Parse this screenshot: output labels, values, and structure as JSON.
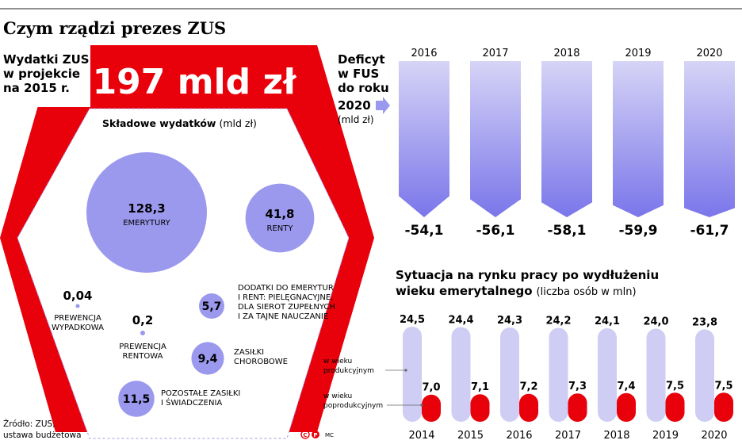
{
  "headline": "Czym rządzi prezes ZUS",
  "spending": {
    "label_lines": [
      "Wydatki ZUS",
      "w projekcie",
      "na 2015 r."
    ],
    "total": "197 mld zł",
    "components_title": "Składowe wydatków",
    "components_unit": "(mld zł)"
  },
  "deficit": {
    "label_lines": [
      "Deficyt",
      "w FUS",
      "do roku",
      "2020"
    ],
    "unit": "(mld zł)"
  },
  "labor": {
    "title_line1": "Sytuacja na rynku pracy po wydłużeniu",
    "title_line2": "wieku emerytalnego",
    "unit": "(liczba osób w mln)",
    "legend_working": [
      "w wieku",
      "produkcyjnym"
    ],
    "legend_retired": [
      "w wieku",
      "poprodukcyjnym"
    ]
  },
  "source_lines": [
    "Źródło: ZUS,",
    "ustawa budżetowa"
  ],
  "credit": "MC",
  "colors": {
    "brand_red": "#e8000b",
    "bubble_purple": "#9b99ee",
    "deficit_top": "#d6d4f6",
    "deficit_bottom": "#7a76ea",
    "working_bar": "#cfcdf4",
    "retired_bar": "#e8000b"
  },
  "chart_data": [
    {
      "type": "bubble",
      "title": "Składowe wydatków",
      "unit": "mld zł",
      "total": 197,
      "items": [
        {
          "value": 128.3,
          "label": "128,3",
          "name_lines": [
            "EMERYTURY"
          ]
        },
        {
          "value": 41.8,
          "label": "41,8",
          "name_lines": [
            "RENTY"
          ]
        },
        {
          "value": 0.04,
          "label": "0,04",
          "name_lines": [
            "PREWENCJA",
            "WYPADKOWA"
          ]
        },
        {
          "value": 0.2,
          "label": "0,2",
          "name_lines": [
            "PREWENCJA",
            "RENTOWA"
          ]
        },
        {
          "value": 5.7,
          "label": "5,7",
          "name_lines": [
            "DODATKI DO EMERYTUR",
            "I RENT: PIELĘGNACYJNE,",
            "DLA SIEROT ZUPEŁNYCH",
            "I ZA TAJNE NAUCZANIE"
          ]
        },
        {
          "value": 9.4,
          "label": "9,4",
          "name_lines": [
            "ZASIŁKI",
            "CHOROBOWE"
          ]
        },
        {
          "value": 11.5,
          "label": "11,5",
          "name_lines": [
            "POZOSTAŁE ZASIŁKI",
            "I ŚWIADCZENIA"
          ]
        }
      ]
    },
    {
      "type": "bar",
      "title": "Deficyt w FUS do roku 2020",
      "unit": "mld zł",
      "categories": [
        "2016",
        "2017",
        "2018",
        "2019",
        "2020"
      ],
      "values": [
        -54.1,
        -56.1,
        -58.1,
        -59.9,
        -61.7
      ],
      "labels": [
        "-54,1",
        "-56,1",
        "-58,1",
        "-59,9",
        "-61,7"
      ]
    },
    {
      "type": "bar",
      "title": "Sytuacja na rynku pracy po wydłużeniu wieku emerytalnego",
      "unit": "liczba osób w mln",
      "categories": [
        "2014",
        "2015",
        "2016",
        "2017",
        "2018",
        "2019",
        "2020"
      ],
      "series": [
        {
          "name": "w wieku produkcyjnym",
          "values": [
            24.5,
            24.4,
            24.3,
            24.2,
            24.1,
            24.0,
            23.8
          ],
          "labels": [
            "24,5",
            "24,4",
            "24,3",
            "24,2",
            "24,1",
            "24,0",
            "23,8"
          ]
        },
        {
          "name": "w wieku poprodukcyjnym",
          "values": [
            7.0,
            7.1,
            7.2,
            7.3,
            7.4,
            7.5,
            7.5
          ],
          "labels": [
            "7,0",
            "7,1",
            "7,2",
            "7,3",
            "7,4",
            "7,5",
            "7,5"
          ]
        }
      ]
    }
  ]
}
